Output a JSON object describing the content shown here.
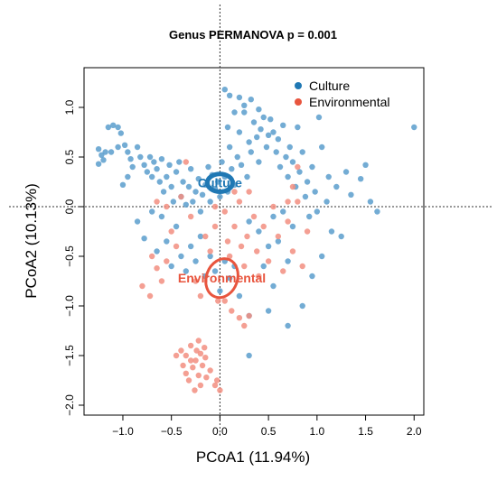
{
  "chart_data": {
    "type": "scatter",
    "title": "Genus PERMANOVA p = 0.001",
    "xlabel": "PCoA1 (11.94%)",
    "ylabel": "PCoA2 (10.13%)",
    "xlim": [
      -1.4,
      2.1
    ],
    "ylim": [
      -2.1,
      1.4
    ],
    "x_ticks": [
      -1.0,
      -0.5,
      0.0,
      0.5,
      1.0,
      1.5,
      2.0
    ],
    "x_tick_labels": [
      "−1.0",
      "−0.5",
      "0.0",
      "0.5",
      "1.0",
      "1.5",
      "2.0"
    ],
    "y_ticks": [
      1.0,
      0.5,
      0.0,
      -0.5,
      -1.0,
      -1.5,
      -2.0
    ],
    "y_tick_labels": [
      "1.0",
      "0.5",
      "0.0",
      "−0.5",
      "−1.0",
      "−1.5",
      "−2.0"
    ],
    "reference_lines": {
      "x": 0,
      "y": 0
    },
    "legend_position": "top-right",
    "grid": false,
    "series": [
      {
        "name": "Culture",
        "color": "#1f78b4",
        "point_color": "#5b9ecd",
        "ellipse": {
          "cx": 0.0,
          "cy": 0.24,
          "rx": 0.13,
          "ry": 0.09,
          "angle": 0
        },
        "centroid_label": "Culture",
        "points": [
          [
            -1.25,
            0.58
          ],
          [
            -1.22,
            0.52
          ],
          [
            -1.2,
            0.47
          ],
          [
            -1.18,
            0.55
          ],
          [
            -1.15,
            0.8
          ],
          [
            -1.1,
            0.82
          ],
          [
            -1.05,
            0.8
          ],
          [
            -1.02,
            0.74
          ],
          [
            -1.25,
            0.43
          ],
          [
            -1.12,
            0.55
          ],
          [
            -1.05,
            0.6
          ],
          [
            -0.98,
            0.62
          ],
          [
            -0.95,
            0.55
          ],
          [
            -0.92,
            0.48
          ],
          [
            -0.9,
            0.4
          ],
          [
            -0.85,
            0.6
          ],
          [
            -0.82,
            0.5
          ],
          [
            -0.78,
            0.42
          ],
          [
            -0.75,
            0.35
          ],
          [
            -0.72,
            0.5
          ],
          [
            -0.7,
            0.3
          ],
          [
            -0.68,
            0.45
          ],
          [
            -0.65,
            0.38
          ],
          [
            -0.62,
            0.25
          ],
          [
            -0.6,
            0.48
          ],
          [
            -0.58,
            0.15
          ],
          [
            -0.55,
            0.3
          ],
          [
            -0.52,
            0.42
          ],
          [
            -0.5,
            0.2
          ],
          [
            -0.48,
            0.05
          ],
          [
            -0.45,
            0.35
          ],
          [
            -0.42,
            0.45
          ],
          [
            -0.4,
            0.1
          ],
          [
            -0.38,
            0.25
          ],
          [
            -0.35,
            0.02
          ],
          [
            -0.32,
            0.2
          ],
          [
            -0.3,
            0.38
          ],
          [
            -0.28,
            0.05
          ],
          [
            -0.25,
            0.15
          ],
          [
            -0.22,
            0.28
          ],
          [
            -0.2,
            -0.05
          ],
          [
            -0.18,
            0.12
          ],
          [
            -0.15,
            0.22
          ],
          [
            -0.12,
            0.4
          ],
          [
            -0.1,
            0.05
          ],
          [
            -0.08,
            0.32
          ],
          [
            -0.05,
            0.18
          ],
          [
            -0.02,
            0.25
          ],
          [
            0.0,
            0.1
          ],
          [
            0.02,
            0.45
          ],
          [
            0.05,
            0.3
          ],
          [
            0.08,
            0.15
          ],
          [
            0.1,
            0.6
          ],
          [
            0.12,
            0.38
          ],
          [
            0.15,
            0.22
          ],
          [
            0.18,
            0.5
          ],
          [
            0.2,
            0.75
          ],
          [
            0.22,
            0.42
          ],
          [
            0.25,
            0.95
          ],
          [
            0.28,
            0.3
          ],
          [
            0.3,
            0.65
          ],
          [
            0.32,
            0.55
          ],
          [
            0.35,
            0.85
          ],
          [
            0.38,
            0.7
          ],
          [
            0.4,
            0.45
          ],
          [
            0.42,
            0.78
          ],
          [
            0.45,
            0.9
          ],
          [
            0.48,
            0.6
          ],
          [
            0.5,
            0.72
          ],
          [
            0.52,
            0.88
          ],
          [
            0.55,
            0.75
          ],
          [
            0.58,
            0.55
          ],
          [
            0.6,
            0.68
          ],
          [
            0.62,
            0.4
          ],
          [
            0.65,
            0.82
          ],
          [
            0.68,
            0.5
          ],
          [
            0.7,
            0.3
          ],
          [
            0.72,
            0.6
          ],
          [
            0.75,
            0.45
          ],
          [
            0.78,
            0.2
          ],
          [
            0.8,
            0.8
          ],
          [
            0.82,
            0.35
          ],
          [
            0.85,
            0.55
          ],
          [
            0.88,
            0.1
          ],
          [
            0.9,
            0.25
          ],
          [
            0.92,
            -0.1
          ],
          [
            0.95,
            0.4
          ],
          [
            0.98,
            0.15
          ],
          [
            1.0,
            -0.05
          ],
          [
            1.02,
            0.9
          ],
          [
            1.05,
            0.6
          ],
          [
            1.1,
            0.05
          ],
          [
            1.12,
            0.3
          ],
          [
            1.15,
            -0.25
          ],
          [
            1.2,
            0.2
          ],
          [
            1.25,
            -0.3
          ],
          [
            1.3,
            0.35
          ],
          [
            1.35,
            0.12
          ],
          [
            1.45,
            0.28
          ],
          [
            1.5,
            0.42
          ],
          [
            1.55,
            0.05
          ],
          [
            1.62,
            -0.05
          ],
          [
            2.0,
            0.8
          ],
          [
            0.05,
            1.18
          ],
          [
            0.1,
            1.12
          ],
          [
            0.2,
            1.1
          ],
          [
            0.25,
            1.02
          ],
          [
            0.32,
            1.08
          ],
          [
            0.4,
            0.98
          ],
          [
            0.15,
            0.95
          ],
          [
            0.08,
            0.8
          ],
          [
            0.3,
            -0.15
          ],
          [
            0.4,
            -0.25
          ],
          [
            0.5,
            -0.4
          ],
          [
            0.55,
            -0.1
          ],
          [
            0.6,
            -0.35
          ],
          [
            0.7,
            -0.55
          ],
          [
            0.75,
            -0.2
          ],
          [
            0.65,
            -0.05
          ],
          [
            0.45,
            -0.6
          ],
          [
            -0.85,
            -0.15
          ],
          [
            -0.78,
            -0.32
          ],
          [
            -0.7,
            -0.05
          ],
          [
            -0.65,
            -0.45
          ],
          [
            -0.55,
            -0.35
          ],
          [
            -0.45,
            -0.2
          ],
          [
            -0.4,
            -0.5
          ],
          [
            -0.35,
            -0.65
          ],
          [
            -0.3,
            -0.4
          ],
          [
            -0.25,
            -0.55
          ],
          [
            -0.2,
            -0.3
          ],
          [
            -0.15,
            -0.7
          ],
          [
            -0.1,
            -0.5
          ],
          [
            -0.05,
            -0.65
          ],
          [
            0.0,
            -0.85
          ],
          [
            0.05,
            -0.55
          ],
          [
            0.1,
            -0.72
          ],
          [
            0.15,
            -0.6
          ],
          [
            0.2,
            -0.9
          ],
          [
            0.3,
            -1.1
          ],
          [
            0.5,
            -1.05
          ],
          [
            0.7,
            -1.2
          ],
          [
            0.95,
            -0.7
          ],
          [
            1.05,
            -0.5
          ],
          [
            0.85,
            -1.0
          ],
          [
            0.55,
            -0.8
          ],
          [
            -0.5,
            -0.6
          ],
          [
            -0.6,
            -0.1
          ],
          [
            -0.95,
            0.3
          ],
          [
            -1.0,
            0.22
          ],
          [
            0.3,
            -1.5
          ]
        ]
      },
      {
        "name": "Environmental",
        "color": "#e8553e",
        "point_color": "#f28e80",
        "ellipse": {
          "cx": 0.02,
          "cy": -0.72,
          "rx": 0.16,
          "ry": 0.2,
          "angle": 20
        },
        "centroid_label": "Environmental",
        "points": [
          [
            -0.4,
            -1.45
          ],
          [
            -0.35,
            -1.5
          ],
          [
            -0.3,
            -1.4
          ],
          [
            -0.25,
            -1.55
          ],
          [
            -0.2,
            -1.48
          ],
          [
            -0.28,
            -1.62
          ],
          [
            -0.22,
            -1.7
          ],
          [
            -0.18,
            -1.6
          ],
          [
            -0.15,
            -1.52
          ],
          [
            -0.32,
            -1.75
          ],
          [
            -0.26,
            -1.85
          ],
          [
            -0.2,
            -1.8
          ],
          [
            -0.14,
            -1.72
          ],
          [
            -0.1,
            -1.65
          ],
          [
            -0.3,
            -1.55
          ],
          [
            -0.24,
            -1.45
          ],
          [
            -0.38,
            -1.6
          ],
          [
            -0.16,
            -1.42
          ],
          [
            -0.45,
            -1.5
          ],
          [
            -0.35,
            -1.68
          ],
          [
            -0.05,
            -1.8
          ],
          [
            0.0,
            -1.85
          ],
          [
            -0.03,
            -1.75
          ],
          [
            -0.22,
            -1.35
          ],
          [
            -0.7,
            -0.5
          ],
          [
            -0.65,
            -0.62
          ],
          [
            -0.72,
            -0.9
          ],
          [
            -0.6,
            -0.75
          ],
          [
            -0.55,
            -0.55
          ],
          [
            -0.5,
            -0.25
          ],
          [
            -0.45,
            -0.4
          ],
          [
            -0.55,
            0.0
          ],
          [
            -0.4,
            0.1
          ],
          [
            -0.3,
            -0.1
          ],
          [
            -0.25,
            -0.75
          ],
          [
            -0.2,
            -0.9
          ],
          [
            -0.15,
            -0.3
          ],
          [
            -0.1,
            -0.45
          ],
          [
            -0.05,
            -0.2
          ],
          [
            -0.02,
            -0.95
          ],
          [
            0.05,
            -0.05
          ],
          [
            0.08,
            -0.35
          ],
          [
            0.1,
            -0.5
          ],
          [
            0.15,
            -0.2
          ],
          [
            0.2,
            0.05
          ],
          [
            0.22,
            -0.4
          ],
          [
            0.25,
            -0.6
          ],
          [
            0.28,
            -0.3
          ],
          [
            0.3,
            0.15
          ],
          [
            0.35,
            -0.1
          ],
          [
            0.38,
            -0.45
          ],
          [
            0.4,
            -0.7
          ],
          [
            0.45,
            -0.2
          ],
          [
            0.5,
            -0.55
          ],
          [
            0.55,
            0.0
          ],
          [
            0.6,
            -0.3
          ],
          [
            0.65,
            -0.65
          ],
          [
            0.7,
            -0.15
          ],
          [
            0.75,
            -0.45
          ],
          [
            0.8,
            0.05
          ],
          [
            0.85,
            -0.6
          ],
          [
            0.9,
            -0.25
          ],
          [
            0.8,
            0.4
          ],
          [
            0.75,
            0.2
          ],
          [
            0.7,
            0.05
          ],
          [
            0.12,
            -1.05
          ],
          [
            0.2,
            -1.12
          ],
          [
            0.25,
            -1.2
          ],
          [
            0.3,
            -1.1
          ],
          [
            -0.65,
            0.05
          ],
          [
            -0.8,
            -0.8
          ],
          [
            0.15,
            0.15
          ],
          [
            0.05,
            -0.95
          ],
          [
            -0.35,
            0.45
          ],
          [
            -0.05,
            0.0
          ]
        ]
      }
    ]
  }
}
